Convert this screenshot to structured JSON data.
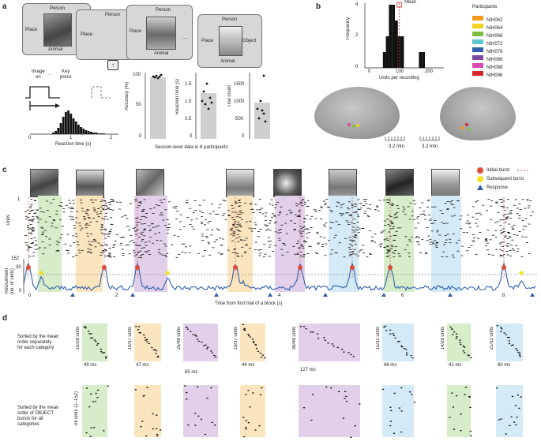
{
  "panels": {
    "a": "a",
    "b": "b",
    "c": "c",
    "d": "d"
  },
  "panel_a": {
    "cards": [
      {
        "top": "Person",
        "left": "Place",
        "bottom": "Animal"
      },
      {
        "top": "Person",
        "left": "Place"
      },
      {
        "top": "Person",
        "left": "Place",
        "bottom": "Animal"
      },
      {
        "top": "Person",
        "left": "Place",
        "right": "Object",
        "bottom": "Animal"
      }
    ],
    "ellipsis": "···",
    "up_key": "↑",
    "timeline": {
      "image_on": "Image\non",
      "key_press": "Key\npress",
      "dots": "···"
    },
    "rt_xlabel": "Reaction time (s)",
    "rt_ticks": [
      "0",
      "1",
      "2"
    ],
    "accuracy": {
      "ylabel": "Accuracy (%)",
      "ticks": [
        "0",
        "50",
        "100"
      ]
    },
    "reaction": {
      "ylabel": "Reaction time (s)",
      "ticks": [
        "0",
        "0.5",
        "1.0",
        "1.5"
      ]
    },
    "trial": {
      "ylabel": "Trial count",
      "ticks": [
        "0",
        "500",
        "1000",
        "1500"
      ]
    },
    "session_caption": "Session-level data in 8 participants"
  },
  "panel_b": {
    "chart_data": {
      "type": "bar",
      "xlabel": "Units per recording",
      "ylabel": "Frequency",
      "xticks": [
        "0",
        "100",
        "200"
      ],
      "yticks": [
        "0",
        "2",
        "4"
      ],
      "ylim": [
        0,
        4
      ],
      "mean_label": "Mean",
      "bins": [
        {
          "x": 65,
          "v": 1
        },
        {
          "x": 75,
          "v": 2
        },
        {
          "x": 85,
          "v": 4
        },
        {
          "x": 95,
          "v": 4
        },
        {
          "x": 105,
          "v": 3
        },
        {
          "x": 115,
          "v": 2
        },
        {
          "x": 125,
          "v": 2
        },
        {
          "x": 185,
          "v": 1
        },
        {
          "x": 195,
          "v": 1
        }
      ],
      "mean": 115
    },
    "participants_title": "Participants",
    "participants": [
      {
        "name": "NIH062",
        "color": "#f39a1e"
      },
      {
        "name": "NIH064",
        "color": "#f2d21e"
      },
      {
        "name": "NIH066",
        "color": "#7fbf3e"
      },
      {
        "name": "NIH072",
        "color": "#5ec5d0"
      },
      {
        "name": "NIH076",
        "color": "#2f5fae"
      },
      {
        "name": "NIH086",
        "color": "#7c4aa5"
      },
      {
        "name": "NIH088",
        "color": "#d94bb3"
      },
      {
        "name": "NIH096",
        "color": "#d7262b"
      }
    ],
    "scale_left": "3.2 mm",
    "scale_right": "3.2 mm"
  },
  "panel_c": {
    "legend": {
      "initial": "Initial burst",
      "subsequent": "Subsequent burst",
      "response": "Response"
    },
    "units_label": "Units",
    "units_ticks": [
      "1",
      "152"
    ],
    "recruit_label": "Recruitment\n(no. of units)",
    "recruit_ticks": [
      "30",
      "0"
    ],
    "xlabel": "Time from first trial of a block (s)",
    "xticks": [
      "0",
      "2",
      "4",
      "6",
      "8"
    ]
  },
  "panel_d": {
    "row1_label": "Sorted by the mean\norder separately\nfor each category",
    "row2_label": "Sorted by the mean\norder of OBJECT\nbursts for all\ncategories",
    "all_units": "All units (1–152)",
    "blocks": [
      {
        "units": "19/28 units",
        "ms": "49 ms",
        "color": "#d7ecc8"
      },
      {
        "units": "19/37 units",
        "ms": "47 ms",
        "color": "#fbe5bf"
      },
      {
        "units": "25/48 units",
        "ms": "65 ms",
        "color": "#e2d0ea"
      },
      {
        "units": "19/37 units",
        "ms": "44 ms",
        "color": "#fbe5bf"
      },
      {
        "units": "38/48 units",
        "ms": "127 ms",
        "color": "#e2d0ea"
      },
      {
        "units": "15/31 units",
        "ms": "66 ms",
        "color": "#d4ebf7"
      },
      {
        "units": "14/28 units",
        "ms": "41 ms",
        "color": "#d7ecc8"
      },
      {
        "units": "21/31 units",
        "ms": "80 ms",
        "color": "#d4ebf7"
      }
    ]
  }
}
